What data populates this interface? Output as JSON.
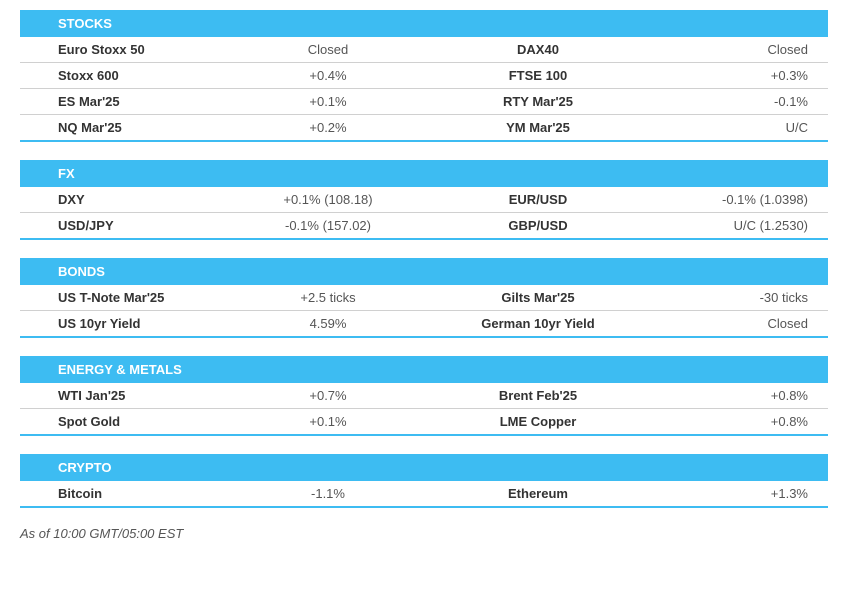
{
  "sections": [
    {
      "title": "STOCKS",
      "rows": [
        {
          "n1": "Euro Stoxx 50",
          "v1": "Closed",
          "n2": "DAX40",
          "v2": "Closed"
        },
        {
          "n1": "Stoxx 600",
          "v1": "+0.4%",
          "n2": "FTSE 100",
          "v2": "+0.3%"
        },
        {
          "n1": "ES Mar'25",
          "v1": "+0.1%",
          "n2": "RTY Mar'25",
          "v2": "-0.1%"
        },
        {
          "n1": "NQ Mar'25",
          "v1": "+0.2%",
          "n2": "YM Mar'25",
          "v2": "U/C"
        }
      ]
    },
    {
      "title": "FX",
      "rows": [
        {
          "n1": "DXY",
          "v1": "+0.1% (108.18)",
          "n2": "EUR/USD",
          "v2": "-0.1% (1.0398)"
        },
        {
          "n1": "USD/JPY",
          "v1": "-0.1% (157.02)",
          "n2": "GBP/USD",
          "v2": "U/C (1.2530)"
        }
      ]
    },
    {
      "title": "BONDS",
      "rows": [
        {
          "n1": "US T-Note Mar'25",
          "v1": "+2.5 ticks",
          "n2": "Gilts Mar'25",
          "v2": "-30 ticks"
        },
        {
          "n1": "US 10yr Yield",
          "v1": "4.59%",
          "n2": "German 10yr Yield",
          "v2": "Closed"
        }
      ]
    },
    {
      "title": "ENERGY & METALS",
      "rows": [
        {
          "n1": "WTI Jan'25",
          "v1": "+0.7%",
          "n2": "Brent Feb'25",
          "v2": "+0.8%"
        },
        {
          "n1": "Spot Gold",
          "v1": "+0.1%",
          "n2": "LME Copper",
          "v2": "+0.8%"
        }
      ]
    },
    {
      "title": "CRYPTO",
      "rows": [
        {
          "n1": "Bitcoin",
          "v1": "-1.1%",
          "n2": "Ethereum",
          "v2": "+1.3%"
        }
      ]
    }
  ],
  "footer": "As of 10:00 GMT/05:00 EST",
  "colors": {
    "header_bg": "#3dbcf2",
    "header_text": "#ffffff",
    "row_border": "#d0d0d0",
    "section_border": "#3dbcf2",
    "text": "#333333",
    "value_text": "#555555"
  }
}
